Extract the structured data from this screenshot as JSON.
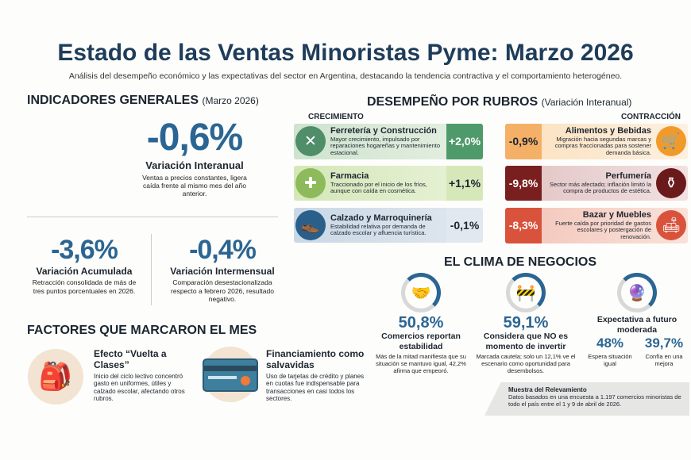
{
  "title": "Estado de las Ventas Minoristas Pyme: Marzo 2026",
  "subtitle": "Análisis del desempeño económico y las expectativas del sector en Argentina, destacando la tendencia contractiva y el comportamiento heterogéneo.",
  "indicadores": {
    "heading": "INDICADORES GENERALES",
    "period": "(Marzo 2026)",
    "main": {
      "value": "-0,6%",
      "label": "Variación Interanual",
      "desc": "Ventas a precios constantes, ligera caída frente al mismo mes del año anterior."
    },
    "acumulada": {
      "value": "-3,6%",
      "label": "Variación Acumulada",
      "desc": "Retracción consolidada de más de tres puntos porcentuales en 2026."
    },
    "intermensual": {
      "value": "-0,4%",
      "label": "Variación Intermensual",
      "desc": "Comparación desestacionalizada respecto a febrero 2026, resultado negativo."
    }
  },
  "factores": {
    "heading": "FACTORES QUE MARCARON EL MES",
    "items": [
      {
        "icon": "backpack-icon",
        "title": "Efecto “Vuelta a Clases”",
        "desc": "Inicio del ciclo lectivo concentró gasto en uniformes, útiles y calzado escolar, afectando otros rubros."
      },
      {
        "icon": "credit-card-icon",
        "title": "Financiamiento como salvavidas",
        "desc": "Uso de tarjetas de crédito y planes en cuotas fue indispensable para transacciones en casi todos los sectores."
      }
    ]
  },
  "rubros": {
    "heading": "DESEMPEÑO POR RUBROS",
    "note": "(Variación Interanual)",
    "crecimiento_label": "CRECIMIENTO",
    "contraccion_label": "CONTRACCIÓN",
    "crecimiento": [
      {
        "icon": "tools-icon",
        "title": "Ferretería y Construcción",
        "desc": "Mayor crecimiento, impulsado por reparaciones hogareñas y mantenimiento estacional.",
        "value": "+2,0%"
      },
      {
        "icon": "pharmacy-icon",
        "title": "Farmacia",
        "desc": "Traccionado por el inicio de los fríos, aunque con caída en cosmética.",
        "value": "+1,1%"
      },
      {
        "icon": "shoe-bag-icon",
        "title": "Calzado y Marroquinería",
        "desc": "Estabilidad relativa por demanda de calzado escolar y afluencia turística.",
        "value": "-0,1%"
      }
    ],
    "contraccion": [
      {
        "icon": "shopping-cart-icon",
        "title": "Alimentos y Bebidas",
        "desc": "Migración hacia segundas marcas y compras fraccionadas para sostener demanda básica.",
        "value": "-0,9%"
      },
      {
        "icon": "perfume-icon",
        "title": "Perfumería",
        "desc": "Sector más afectado; inflación limitó la compra de productos de estética.",
        "value": "-9,8%"
      },
      {
        "icon": "armchair-lamp-icon",
        "title": "Bazar y Muebles",
        "desc": "Fuerte caída por prioridad de gastos escolares y postergación de renovación.",
        "value": "-8,3%"
      }
    ]
  },
  "clima": {
    "heading": "EL CLIMA DE NEGOCIOS",
    "estabilidad": {
      "value": "50,8%",
      "label": "Comercios reportan estabilidad",
      "desc": "Más de la mitad manifiesta que su situación se mantuvo igual, 42,2% afirma que empeoró."
    },
    "inversion": {
      "value": "59,1%",
      "label": "Considera que NO es momento de invertir",
      "desc": "Marcada cautela; solo un 12,1% ve el escenario como oportunidad para desembolsos."
    },
    "expectativa": {
      "label": "Expectativa a futuro moderada",
      "a_value": "48%",
      "a_label": "Espera situación igual",
      "b_value": "39,7%",
      "b_label": "Confía en una mejora"
    }
  },
  "muestra": {
    "title": "Muestra del Relevamiento",
    "desc": "Datos basados en una encuesta a 1.197 comercios minoristas de todo el país entre el 1 y 9 de abril de 2026."
  },
  "colors": {
    "blue": "#2b6593",
    "title": "#1f3d5a",
    "green": "#4e9a6a",
    "orange": "#f09a2a",
    "wine": "#7a1f1f",
    "red": "#d9533c"
  }
}
